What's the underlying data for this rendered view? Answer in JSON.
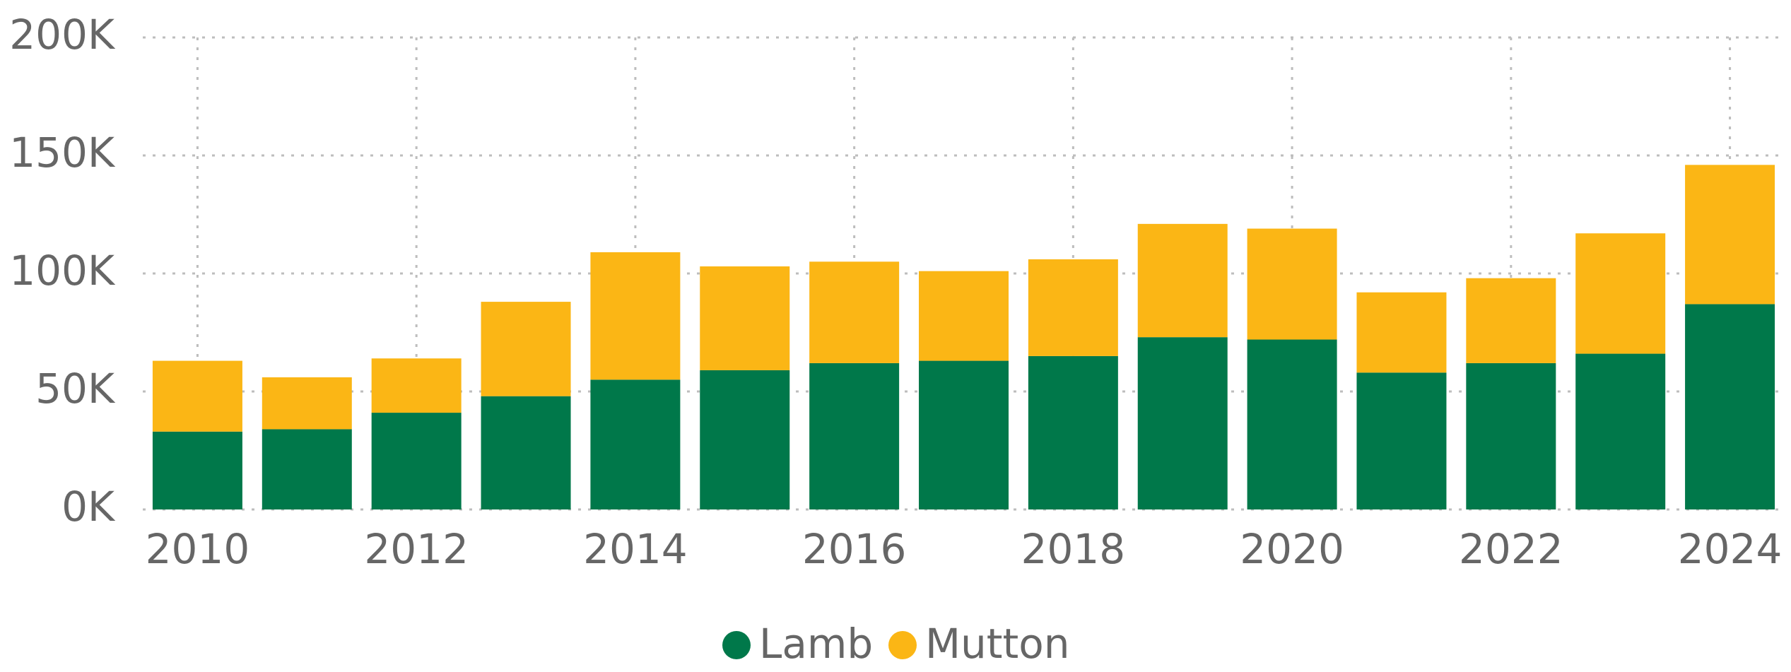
{
  "chart_data": {
    "type": "stacked_bar",
    "categories": [
      "2010",
      null,
      "2012",
      null,
      "2014",
      null,
      "2016",
      null,
      "2018",
      null,
      "2020",
      null,
      "2022",
      null,
      "2024"
    ],
    "series": [
      {
        "name": "Lamb",
        "color": "#00784a",
        "values": [
          33000,
          34000,
          41000,
          48000,
          55000,
          59000,
          62000,
          63000,
          65000,
          73000,
          72000,
          58000,
          62000,
          66000,
          87000
        ]
      },
      {
        "name": "Mutton",
        "color": "#fbb615",
        "values": [
          30000,
          22000,
          23000,
          40000,
          54000,
          44000,
          43000,
          38000,
          41000,
          48000,
          47000,
          34000,
          36000,
          51000,
          59000
        ]
      }
    ],
    "ylim": [
      0,
      200000
    ],
    "yticks": [
      {
        "value": 0,
        "label": "0K"
      },
      {
        "value": 50000,
        "label": "50K"
      },
      {
        "value": 100000,
        "label": "100K"
      },
      {
        "value": 150000,
        "label": "150K"
      },
      {
        "value": 200000,
        "label": "200K"
      }
    ],
    "grid": true,
    "legend": "bottom"
  }
}
